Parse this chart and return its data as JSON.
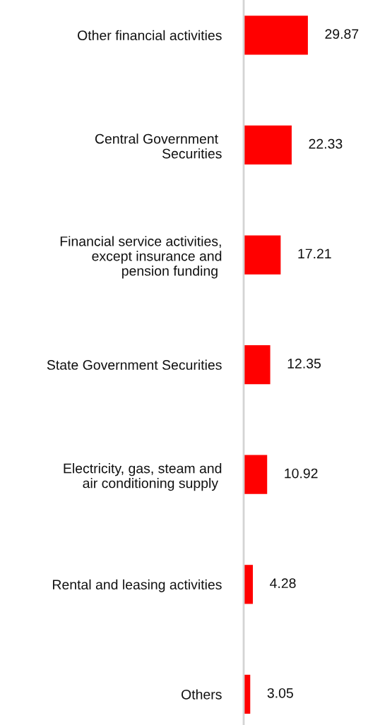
{
  "chart_data": {
    "type": "bar",
    "orientation": "horizontal",
    "categories": [
      "Other financial activities",
      "Central Government \nSecurities",
      "Financial service activities,\nexcept insurance and\npension funding ",
      "State Government Securities",
      "Electricity, gas, steam and\nair conditioning supply ",
      "Rental and leasing activities",
      "Others"
    ],
    "values": [
      29.87,
      22.33,
      17.21,
      12.35,
      10.92,
      4.28,
      3.05
    ],
    "color": "#ff0000",
    "data_labels": true,
    "tick_labels": "y",
    "grid": false,
    "legend": false
  }
}
